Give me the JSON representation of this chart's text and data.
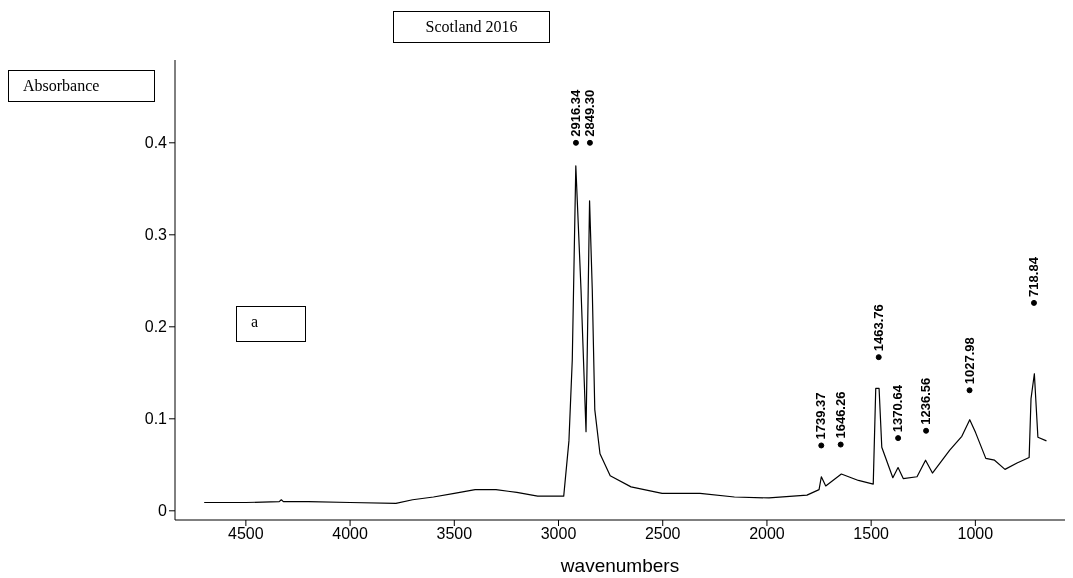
{
  "chart_data": {
    "type": "line",
    "title": "Scotland 2016",
    "xlabel": "wavenumbers",
    "ylabel": "Absorbance",
    "x": [
      4700,
      4500,
      4340,
      4330,
      4320,
      4200,
      4000,
      3780,
      3700,
      3600,
      3500,
      3400,
      3300,
      3200,
      3100,
      3000,
      2975,
      2950,
      2934,
      2917,
      2892,
      2868,
      2851,
      2838,
      2826,
      2801,
      2752,
      2652,
      2503,
      2321,
      2156,
      1990,
      1808,
      1750,
      1739,
      1718,
      1643,
      1561,
      1490,
      1478,
      1462,
      1449,
      1396,
      1371,
      1346,
      1280,
      1239,
      1206,
      1123,
      1065,
      1027,
      999,
      950,
      908,
      858,
      800,
      742,
      733,
      717,
      700,
      659
    ],
    "series": [
      {
        "color": "#000000",
        "values": [
          0.009,
          0.009,
          0.01,
          0.012,
          0.01,
          0.01,
          0.009,
          0.008,
          0.012,
          0.015,
          0.019,
          0.023,
          0.023,
          0.02,
          0.016,
          0.016,
          0.016,
          0.076,
          0.164,
          0.375,
          0.24,
          0.086,
          0.337,
          0.24,
          0.11,
          0.062,
          0.038,
          0.026,
          0.019,
          0.019,
          0.015,
          0.014,
          0.017,
          0.023,
          0.037,
          0.027,
          0.04,
          0.033,
          0.029,
          0.133,
          0.133,
          0.069,
          0.036,
          0.047,
          0.035,
          0.037,
          0.055,
          0.041,
          0.066,
          0.081,
          0.099,
          0.085,
          0.057,
          0.055,
          0.045,
          0.052,
          0.058,
          0.122,
          0.149,
          0.08,
          0.076
        ]
      }
    ],
    "xlim": [
      4840,
      570
    ],
    "xticks": [
      4500,
      4000,
      3500,
      3000,
      2500,
      2000,
      1500,
      1000
    ],
    "ylim": [
      -0.01,
      0.49
    ],
    "yticks": [
      0,
      0.1,
      0.2,
      0.3,
      0.4
    ],
    "grid": false,
    "legend": false,
    "marker": "none",
    "line_style": "solid",
    "annotations": [
      {
        "text": "2916.34",
        "x": 2916.34,
        "y": 0.4
      },
      {
        "text": "2849.30",
        "x": 2849.3,
        "y": 0.4
      },
      {
        "text": "1739.37",
        "x": 1739.37,
        "y": 0.071
      },
      {
        "text": "1646.26",
        "x": 1646.26,
        "y": 0.072
      },
      {
        "text": "1463.76",
        "x": 1463.76,
        "y": 0.167
      },
      {
        "text": "1370.64",
        "x": 1370.64,
        "y": 0.079
      },
      {
        "text": "1236.56",
        "x": 1236.56,
        "y": 0.087
      },
      {
        "text": "1027.98",
        "x": 1027.98,
        "y": 0.131
      },
      {
        "text": "718.84",
        "x": 718.84,
        "y": 0.226
      },
      "a"
    ]
  }
}
